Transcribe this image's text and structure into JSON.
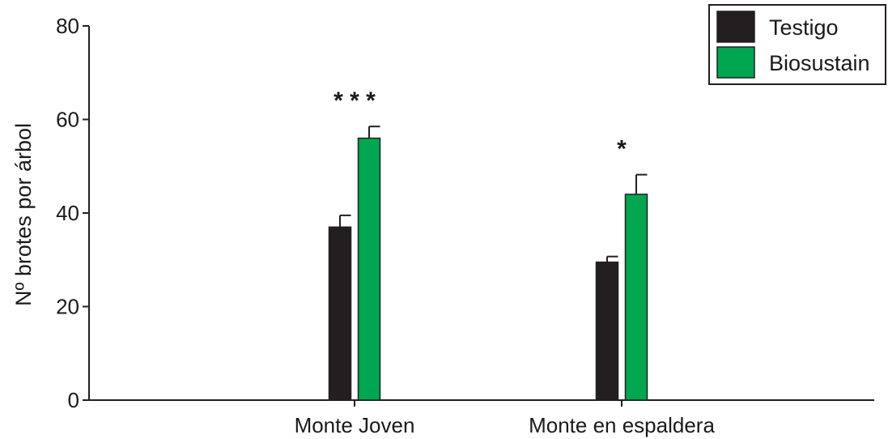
{
  "chart_data": {
    "type": "bar",
    "title": "",
    "xlabel": "",
    "ylabel": "Nº brotes por árbol",
    "ylim": [
      0,
      80
    ],
    "yticks": [
      "0",
      "20",
      "40",
      "60",
      "80"
    ],
    "categories": [
      "Monte Joven",
      "Monte en espaldera"
    ],
    "series": [
      {
        "name": "Testigo",
        "color": "#231f20",
        "values": [
          37,
          29.5
        ],
        "errors": [
          2.5,
          1.2
        ]
      },
      {
        "name": "Biosustain",
        "color": "#00a650",
        "values": [
          56,
          44
        ],
        "errors": [
          2.5,
          4.2
        ]
      }
    ],
    "annotations": [
      "* * *",
      "*"
    ],
    "legend": {
      "position": "top-right"
    },
    "grid": false
  }
}
